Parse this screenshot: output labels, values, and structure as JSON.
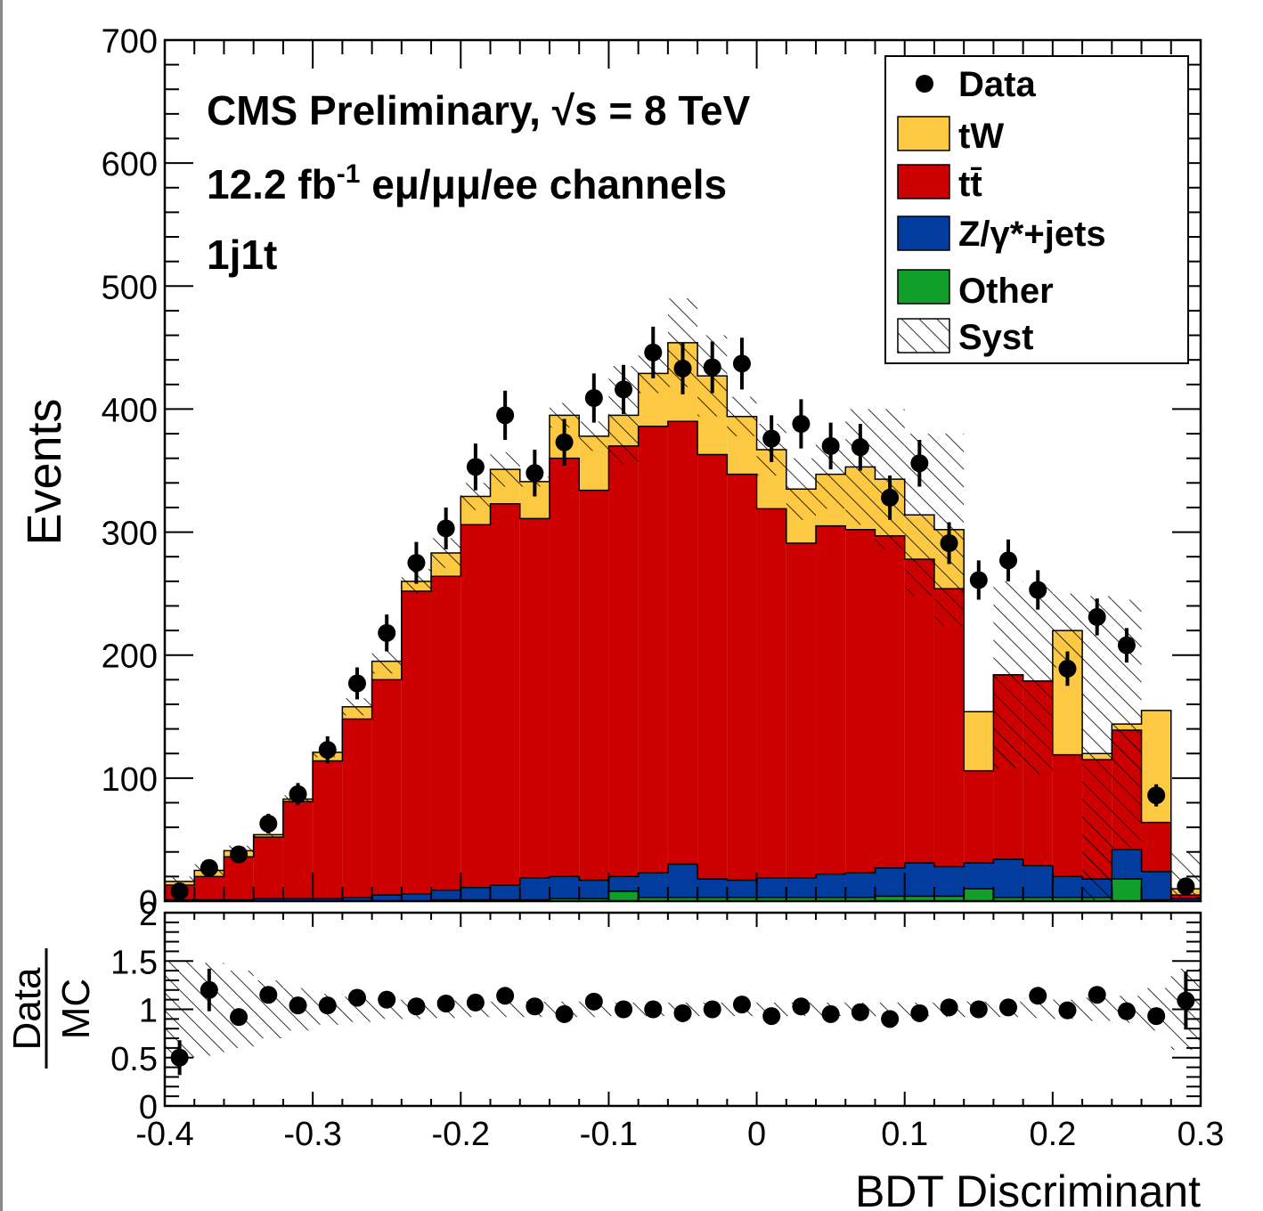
{
  "chart_data": [
    {
      "type": "stacked-histogram",
      "annotations": {
        "line1_pre": "CMS Preliminary, ",
        "line1_sqrt": "√s",
        "line1_post": " = 8 TeV",
        "line2_pre": "12.2 fb",
        "line2_sup": "-1",
        "line2_post": " eμ/μμ/ee channels",
        "line3": "1j1t"
      },
      "xlabel": "BDT Discriminant",
      "ylabel": "Events",
      "xlim": [
        -0.4,
        0.3
      ],
      "ylim": [
        0,
        700
      ],
      "xticks": [
        "-0.4",
        "-0.3",
        "-0.2",
        "-0.1",
        "0",
        "0.1",
        "0.2",
        "0.3"
      ],
      "yticks": [
        "0",
        "100",
        "200",
        "300",
        "400",
        "500",
        "600",
        "700"
      ],
      "bin_edges": [
        -0.4,
        -0.38,
        -0.36,
        -0.34,
        -0.32,
        -0.3,
        -0.28,
        -0.26,
        -0.24,
        -0.22,
        -0.2,
        -0.18,
        -0.16,
        -0.14,
        -0.12,
        -0.1,
        -0.08,
        -0.06,
        -0.04,
        -0.02,
        0,
        0.02,
        0.04,
        0.06,
        0.08,
        0.1,
        0.12,
        0.14,
        0.16,
        0.18,
        0.2,
        0.22,
        0.24,
        0.26,
        0.28,
        0.3
      ],
      "series": [
        {
          "name": "Other",
          "color": "#119e2a",
          "values": [
            0,
            0,
            0,
            0,
            0,
            0,
            0,
            0,
            0,
            1,
            1,
            1,
            1,
            2,
            2,
            8,
            3,
            3,
            3,
            3,
            3,
            3,
            3,
            3,
            4,
            4,
            4,
            10,
            3,
            3,
            3,
            3,
            18,
            1,
            0
          ]
        },
        {
          "name": "Z/γ*+jets",
          "color": "#023c9e",
          "values": [
            1,
            1,
            1,
            2,
            2,
            2,
            3,
            5,
            6,
            8,
            10,
            12,
            18,
            18,
            15,
            12,
            20,
            27,
            15,
            14,
            16,
            16,
            19,
            20,
            23,
            27,
            24,
            21,
            31,
            26,
            17,
            15,
            24,
            23,
            2
          ]
        },
        {
          "name": "tt̄",
          "color": "#cc0000",
          "values": [
            12,
            19,
            35,
            50,
            79,
            112,
            145,
            175,
            246,
            255,
            295,
            310,
            292,
            340,
            317,
            350,
            363,
            360,
            345,
            330,
            300,
            272,
            283,
            279,
            270,
            247,
            226,
            75,
            150,
            150,
            99,
            97,
            97,
            40,
            3
          ]
        },
        {
          "name": "tW",
          "color": "#fdc842",
          "values": [
            3,
            5,
            5,
            2,
            2,
            7,
            10,
            15,
            8,
            19,
            23,
            28,
            30,
            35,
            44,
            25,
            43,
            64,
            64,
            47,
            48,
            44,
            42,
            51,
            46,
            36,
            48,
            48,
            0,
            0,
            101,
            5,
            5,
            91,
            5
          ]
        }
      ],
      "syst_band_totals": [
        20,
        30,
        45,
        56,
        86,
        125,
        165,
        205,
        270,
        295,
        340,
        365,
        345,
        405,
        390,
        435,
        445,
        490,
        460,
        410,
        388,
        360,
        375,
        400,
        400,
        380,
        380,
        150,
        260,
        255,
        250,
        248,
        245,
        120,
        40
      ],
      "data": {
        "name": "Data",
        "x": [
          -0.39,
          -0.37,
          -0.35,
          -0.33,
          -0.31,
          -0.29,
          -0.27,
          -0.25,
          -0.23,
          -0.21,
          -0.19,
          -0.17,
          -0.15,
          -0.13,
          -0.11,
          -0.09,
          -0.07,
          -0.05,
          -0.03,
          -0.01,
          0.01,
          0.03,
          0.05,
          0.07,
          0.09,
          0.11,
          0.13,
          0.15,
          0.17,
          0.19,
          0.21,
          0.23,
          0.25,
          0.27,
          0.29
        ],
        "y": [
          8,
          27,
          38,
          63,
          87,
          123,
          177,
          218,
          275,
          303,
          353,
          395,
          348,
          373,
          409,
          416,
          446,
          433,
          434,
          437,
          376,
          388,
          370,
          369,
          328,
          356,
          291,
          261,
          277,
          253,
          189,
          231,
          208,
          86,
          12
        ],
        "err": [
          3,
          5,
          6,
          8,
          9,
          11,
          13,
          15,
          17,
          17,
          19,
          20,
          19,
          19,
          20,
          20,
          21,
          21,
          21,
          21,
          19,
          20,
          19,
          19,
          18,
          19,
          17,
          16,
          17,
          16,
          14,
          15,
          14,
          9,
          3
        ]
      },
      "legend": {
        "placement": "top-right",
        "entries": [
          "Data",
          "tW",
          "tt̄",
          "Z/γ*+jets",
          "Other",
          "Syst"
        ]
      }
    },
    {
      "type": "ratio",
      "ylabel_num": "Data",
      "ylabel_den": "MC",
      "xlim": [
        -0.4,
        0.3
      ],
      "ylim": [
        0,
        2
      ],
      "yticks": [
        "0",
        "0.5",
        "1",
        "1.5",
        "2"
      ],
      "x": [
        -0.39,
        -0.37,
        -0.35,
        -0.33,
        -0.31,
        -0.29,
        -0.27,
        -0.25,
        -0.23,
        -0.21,
        -0.19,
        -0.17,
        -0.15,
        -0.13,
        -0.11,
        -0.09,
        -0.07,
        -0.05,
        -0.03,
        -0.01,
        0.01,
        0.03,
        0.05,
        0.07,
        0.09,
        0.11,
        0.13,
        0.15,
        0.17,
        0.19,
        0.21,
        0.23,
        0.25,
        0.27,
        0.29
      ],
      "y": [
        0.5,
        1.2,
        0.92,
        1.15,
        1.04,
        1.04,
        1.12,
        1.1,
        1.03,
        1.06,
        1.07,
        1.14,
        1.03,
        0.95,
        1.08,
        1.0,
        1.0,
        0.96,
        1.0,
        1.05,
        0.93,
        1.03,
        0.95,
        0.97,
        0.9,
        0.96,
        1.02,
        1.0,
        1.02,
        1.14,
        0.99,
        1.15,
        0.98,
        0.93,
        1.09
      ],
      "err": [
        0.18,
        0.22,
        0.08,
        0.07,
        0.06,
        0.05,
        0.05,
        0.04,
        0.04,
        0.04,
        0.04,
        0.04,
        0.04,
        0.03,
        0.04,
        0.04,
        0.04,
        0.04,
        0.04,
        0.04,
        0.04,
        0.04,
        0.04,
        0.04,
        0.04,
        0.04,
        0.04,
        0.04,
        0.04,
        0.05,
        0.05,
        0.05,
        0.05,
        0.07,
        0.3
      ],
      "syst_half_width": [
        0.5,
        0.48,
        0.4,
        0.3,
        0.22,
        0.16,
        0.13,
        0.1,
        0.1,
        0.09,
        0.08,
        0.08,
        0.08,
        0.08,
        0.08,
        0.07,
        0.07,
        0.07,
        0.07,
        0.07,
        0.07,
        0.07,
        0.07,
        0.07,
        0.07,
        0.07,
        0.08,
        0.08,
        0.08,
        0.09,
        0.1,
        0.12,
        0.14,
        0.22,
        0.42
      ]
    }
  ]
}
